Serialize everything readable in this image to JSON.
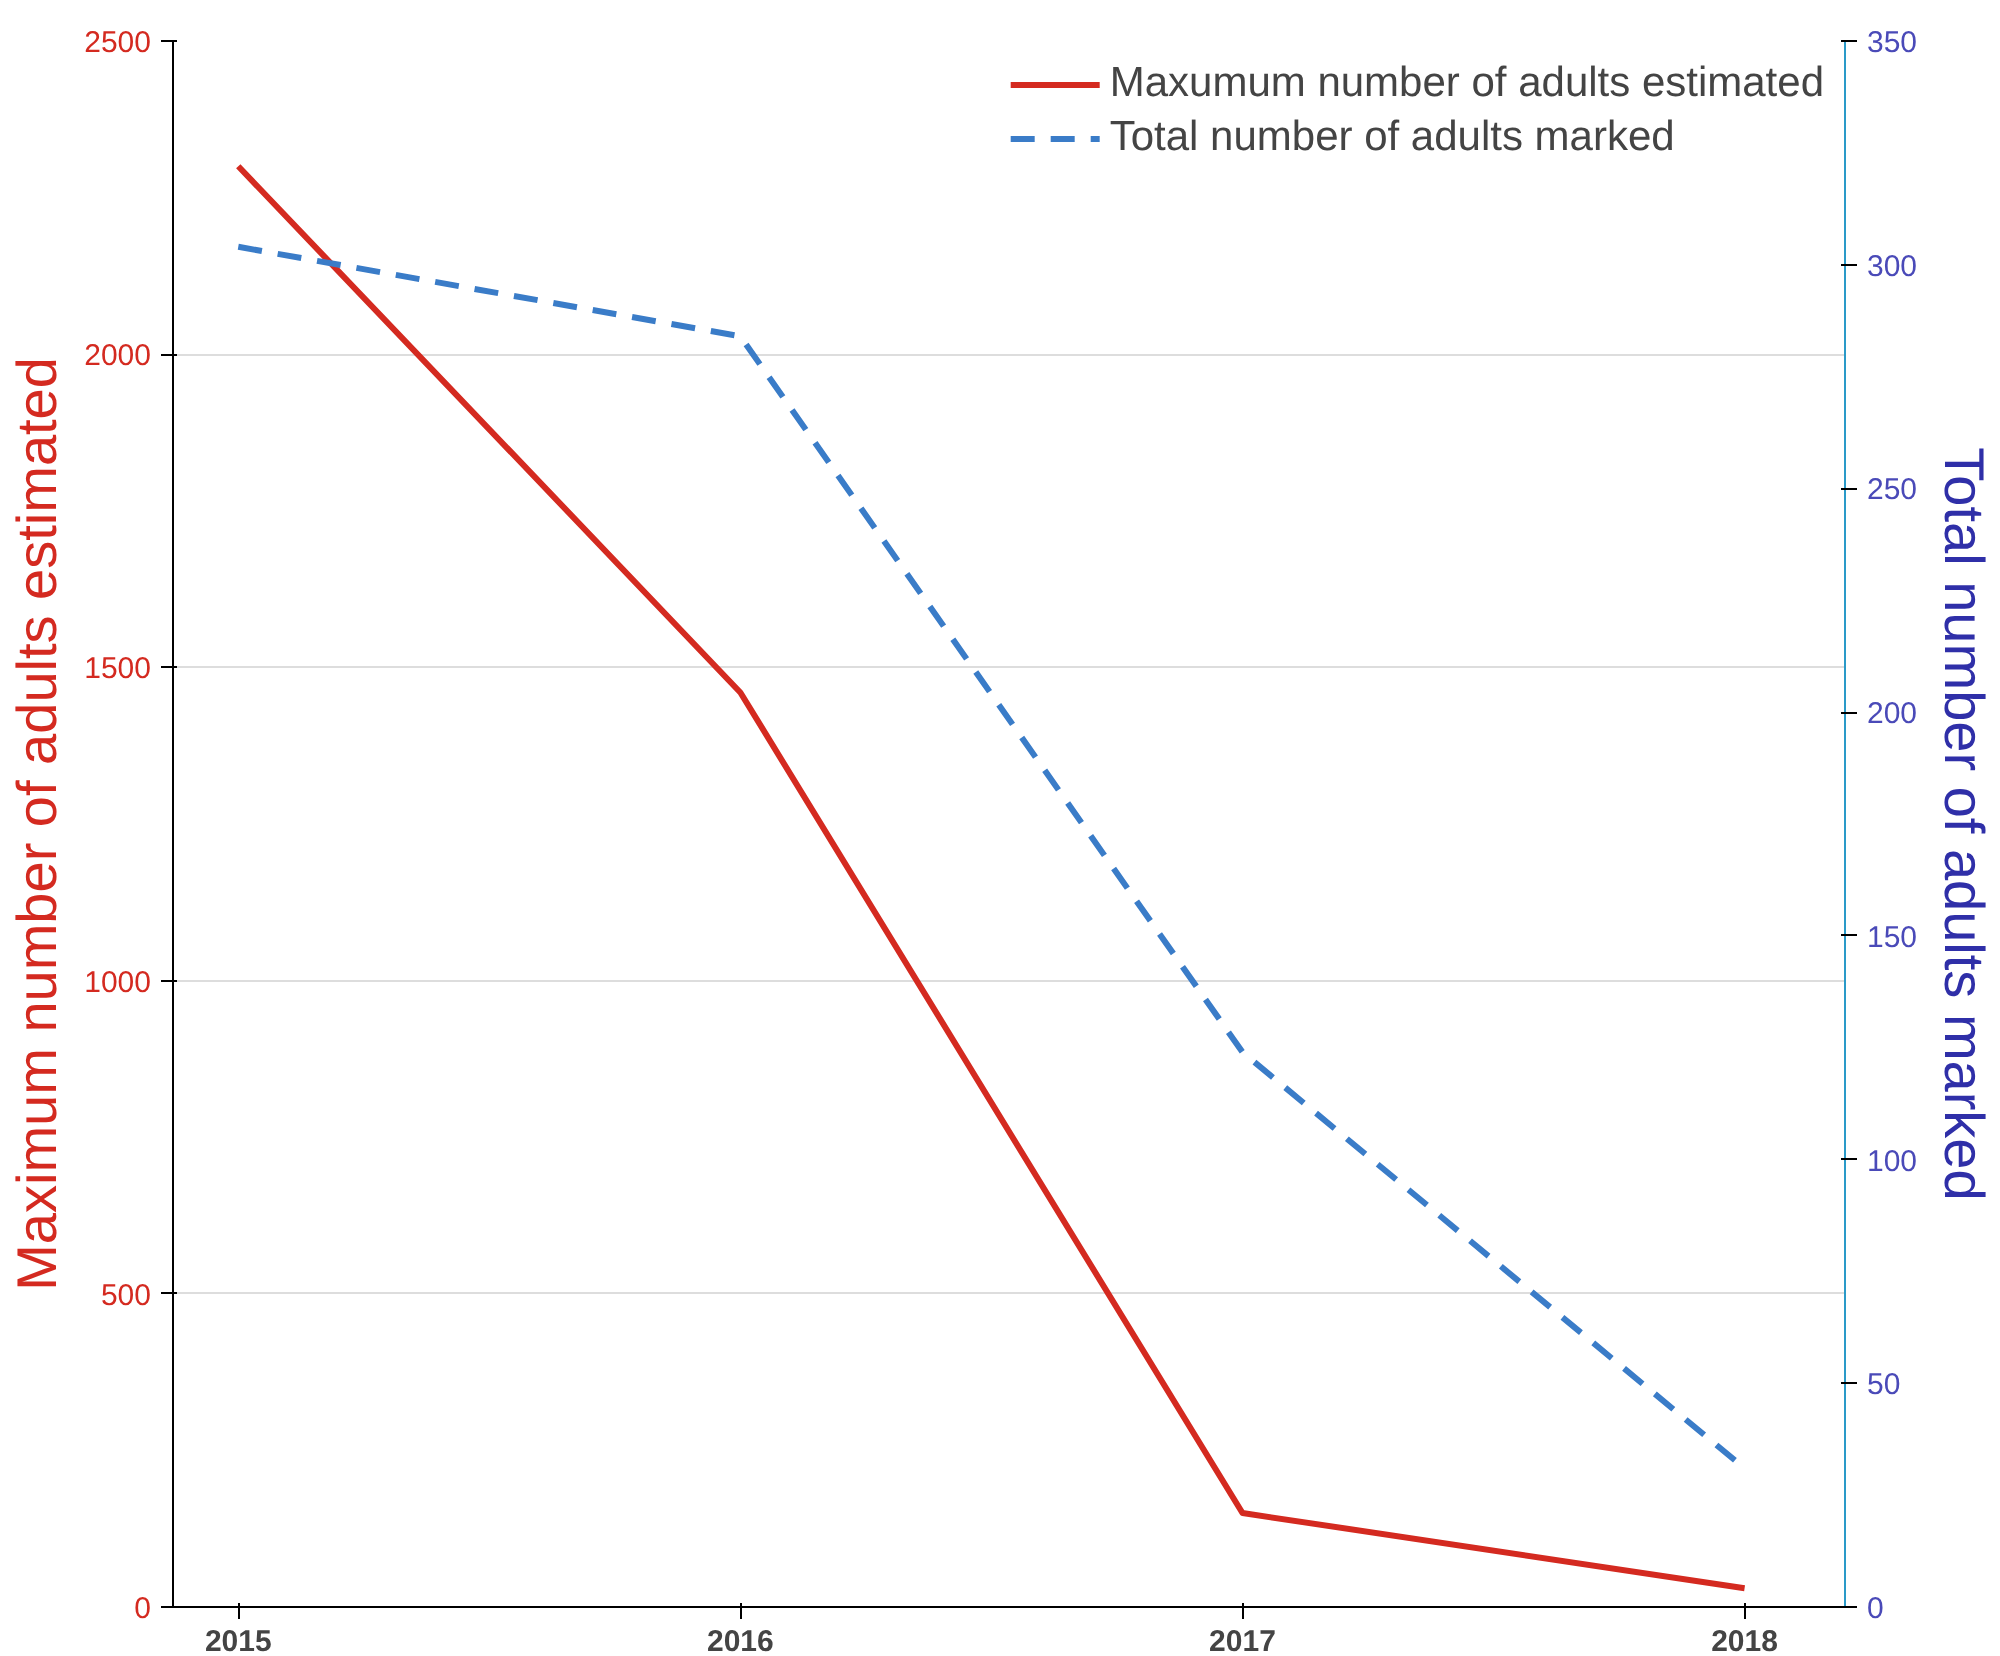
{
  "chart_data": {
    "type": "line",
    "x": [
      2015,
      2016,
      2017,
      2018
    ],
    "xlim": [
      2014.87,
      2018.2
    ],
    "xticks": [
      2015,
      2016,
      2017,
      2018
    ],
    "ylim": [
      0,
      2500
    ],
    "yticks": [
      0,
      500,
      1000,
      1500,
      2000,
      2500
    ],
    "y2lim": [
      0,
      350
    ],
    "y2ticks": [
      0,
      50,
      100,
      150,
      200,
      250,
      300,
      350
    ],
    "ylabel": "Maximum number of adults estimated",
    "y2label": "Total number of adults marked",
    "grid": "y",
    "legend": "top right",
    "series": [
      {
        "name": "Maxumum number of adults estimated",
        "color": "#d42a20",
        "values": [
          2300,
          1460,
          150,
          30
        ],
        "line_style": "solid"
      },
      {
        "name": "Total number of adults marked",
        "color": "#3a7cc8",
        "values": [
          304,
          284,
          124,
          31
        ],
        "line_style": "dashed",
        "axis": "y2"
      }
    ]
  }
}
